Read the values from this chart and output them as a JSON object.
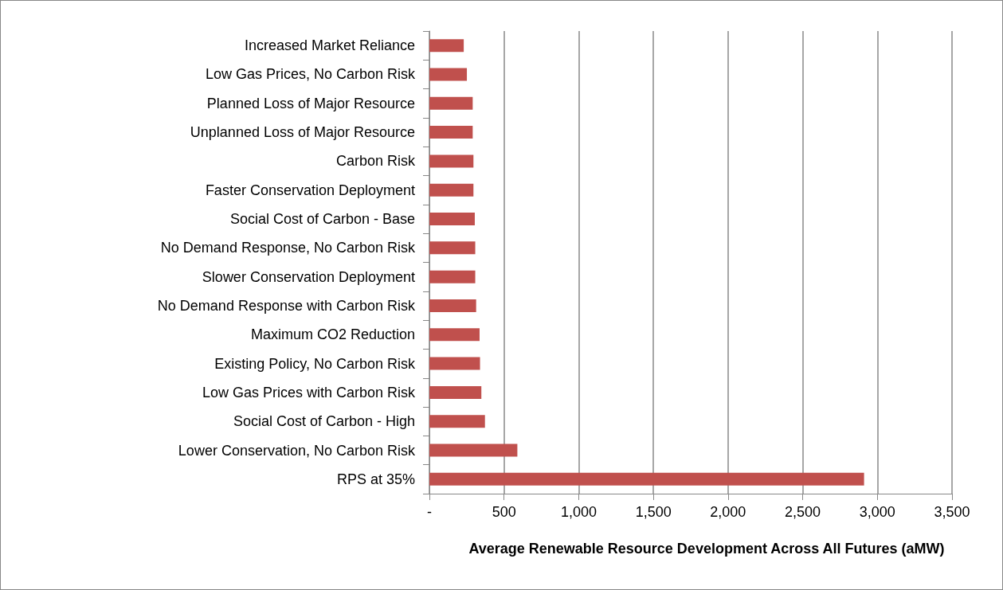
{
  "chart_data": {
    "type": "bar",
    "orientation": "horizontal",
    "xlabel": "Average Renewable Resource Development Across All Futures (aMW)",
    "categories": [
      "Increased Market Reliance",
      "Low Gas Prices, No Carbon Risk",
      "Planned Loss of Major Resource",
      "Unplanned Loss of Major Resource",
      "Carbon Risk",
      "Faster Conservation Deployment",
      "Social Cost of Carbon - Base",
      "No Demand Response, No Carbon Risk",
      "Slower Conservation Deployment",
      "No Demand Response with Carbon Risk",
      "Maximum CO2 Reduction",
      "Existing Policy, No Carbon Risk",
      "Low Gas Prices with Carbon Risk",
      "Social Cost of Carbon - High",
      "Lower Conservation, No Carbon Risk",
      "RPS at 35%"
    ],
    "values": [
      230,
      251,
      290,
      290,
      295,
      295,
      304,
      307,
      307,
      313,
      336,
      339,
      348,
      372,
      589,
      2911
    ],
    "color": "#c0504d",
    "xlim": [
      0,
      3500
    ],
    "xticks": [
      {
        "value": 0,
        "label": "-"
      },
      {
        "value": 500,
        "label": "500"
      },
      {
        "value": 1000,
        "label": "1,000"
      },
      {
        "value": 1500,
        "label": "1,500"
      },
      {
        "value": 2000,
        "label": "2,000"
      },
      {
        "value": 2500,
        "label": "2,500"
      },
      {
        "value": 3000,
        "label": "3,000"
      },
      {
        "value": 3500,
        "label": "3,500"
      }
    ],
    "grid": "x"
  }
}
